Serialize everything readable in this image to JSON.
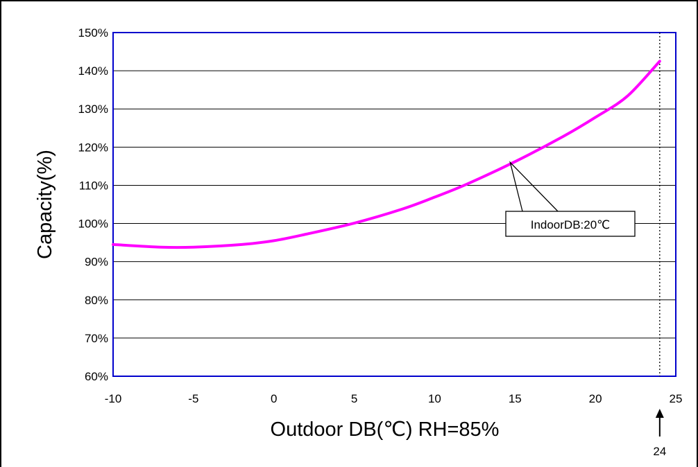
{
  "chart_data": {
    "type": "line",
    "xlabel": "Outdoor DB(℃) RH=85%",
    "ylabel": "Capacity(%)",
    "xlim": [
      -10,
      25
    ],
    "ylim": [
      60,
      150
    ],
    "x_ticks": [
      -10,
      -5,
      0,
      5,
      10,
      15,
      20,
      25
    ],
    "x_tick_labels": [
      "-10",
      "-5",
      "0",
      "5",
      "10",
      "15",
      "20",
      "25"
    ],
    "y_ticks": [
      60,
      70,
      80,
      90,
      100,
      110,
      120,
      130,
      140,
      150
    ],
    "y_tick_labels": [
      "60%",
      "70%",
      "80%",
      "90%",
      "100%",
      "110%",
      "120%",
      "130%",
      "140%",
      "150%"
    ],
    "grid": "horizontal",
    "series": [
      {
        "name": "IndoorDB:20℃",
        "color": "#ff00ff",
        "x": [
          -10,
          -7,
          -5,
          -2,
          0,
          2,
          5,
          8,
          10,
          12,
          15,
          18,
          20,
          22,
          24
        ],
        "y": [
          94.5,
          93.8,
          93.8,
          94.5,
          95.5,
          97.2,
          100.1,
          103.8,
          106.9,
          110.3,
          116.2,
          122.8,
          127.8,
          133.4,
          142.5
        ]
      }
    ],
    "annotations": [
      {
        "text": "IndoorDB:20℃",
        "target_x": 14.7,
        "target_y": 116.0
      },
      {
        "text": "24",
        "target_x": 24,
        "style": "arrow-below-axis"
      }
    ],
    "marker_line_x": 24,
    "colors": {
      "plot_border": "#0000cc",
      "grid": "#000000",
      "series": "#ff00ff"
    }
  }
}
